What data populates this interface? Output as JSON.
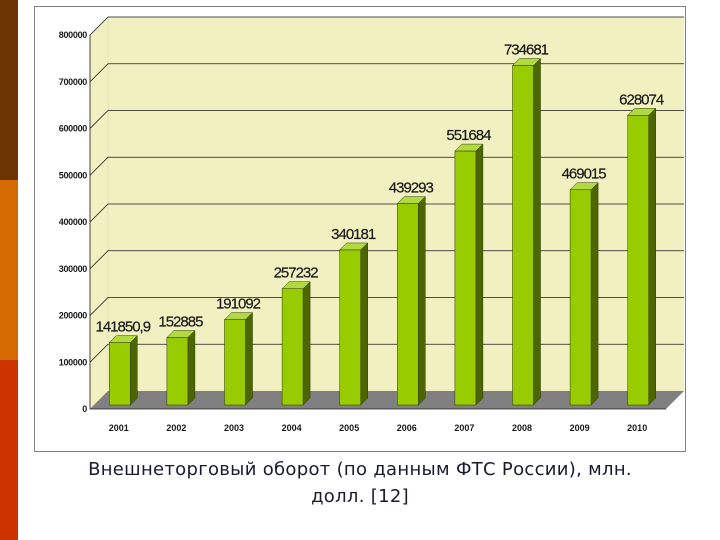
{
  "slide": {
    "caption_line1": "Внешнеторговый оборот (по данным ФТС России), млн.",
    "caption_line2": "долл. [12]"
  },
  "colors": {
    "plot_wall": "#f0f0c0",
    "floor": "#808080",
    "bar_front": "#99cc00",
    "bar_side": "#4d6600",
    "bar_top": "#b3d940",
    "label": "#1a1a1a",
    "gridline": "#1a1a1a"
  },
  "chart_data": {
    "type": "bar",
    "title": "",
    "xlabel": "",
    "ylabel": "",
    "categories": [
      "2001",
      "2002",
      "2003",
      "2004",
      "2005",
      "2006",
      "2007",
      "2008",
      "2009",
      "2010"
    ],
    "values": [
      141850.9,
      152885,
      191092,
      257232,
      340181,
      439293,
      551684,
      734681,
      469015,
      628074
    ],
    "data_labels": [
      "141850,9",
      "152885",
      "191092",
      "257232",
      "340181",
      "439293",
      "551684",
      "734681",
      "469015",
      "628074"
    ],
    "ylim": [
      0,
      800000
    ],
    "yticks": [
      0,
      100000,
      200000,
      300000,
      400000,
      500000,
      600000,
      700000,
      800000
    ],
    "ytick_labels": [
      "0",
      "100000",
      "200000",
      "300000",
      "400000",
      "500000",
      "600000",
      "700000",
      "800000"
    ],
    "grid": true,
    "legend": "none",
    "style": "3d-columns"
  }
}
